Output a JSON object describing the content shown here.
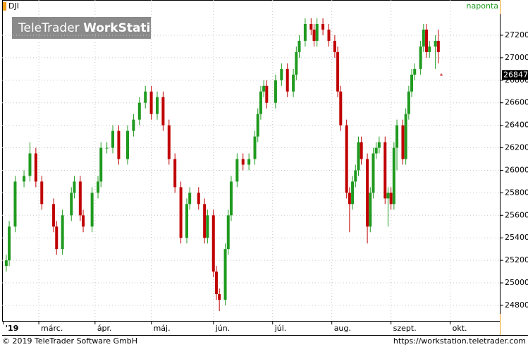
{
  "chart_data": {
    "type": "candlestick",
    "symbol": "DJI",
    "interval": "naponta",
    "watermark_brand": "TeleTrader",
    "watermark_product": "WorkStation",
    "footer_left": "© 2019 TeleTrader Software GmbH",
    "footer_right": "https://workstation.teletrader.com",
    "up_color": "#1f9a1f",
    "down_color": "#c00000",
    "xlim": [
      -1.4,
      167
    ],
    "ylim": [
      24662,
      27513
    ],
    "yticks": [
      24800,
      25000,
      25200,
      25400,
      25600,
      25800,
      26000,
      26200,
      26400,
      26600,
      26800,
      27000,
      27200
    ],
    "xticks": [
      {
        "value": -1,
        "label": "'19"
      },
      {
        "value": 11,
        "label": "márc."
      },
      {
        "value": 30,
        "label": "ápr."
      },
      {
        "value": 49,
        "label": "máj."
      },
      {
        "value": 70,
        "label": "jún."
      },
      {
        "value": 90,
        "label": "júl."
      },
      {
        "value": 110,
        "label": "aug."
      },
      {
        "value": 130,
        "label": "szept."
      },
      {
        "value": 150,
        "label": "okt."
      }
    ],
    "grid": true,
    "x": [
      0,
      1,
      3,
      6,
      8,
      10,
      12,
      16,
      17,
      19,
      22,
      23,
      25,
      26,
      29,
      31,
      32,
      34,
      36,
      38,
      41,
      43,
      45,
      47,
      49,
      51,
      53,
      55,
      57,
      59,
      61,
      62,
      65,
      67,
      68,
      70,
      71,
      72,
      74,
      75,
      76,
      78,
      80,
      82,
      84,
      85,
      86,
      87,
      88,
      91,
      93,
      95,
      97,
      98,
      99,
      101,
      103,
      104,
      105,
      107,
      109,
      111,
      112,
      113,
      115,
      116,
      117,
      118,
      119,
      120,
      122,
      123,
      124,
      125,
      126,
      128,
      129,
      130,
      131,
      132,
      134,
      135,
      136,
      137,
      138,
      140,
      141,
      142,
      143,
      145,
      146,
      147
    ],
    "open": [
      25150,
      25200,
      25500,
      25900,
      25950,
      26150,
      25900,
      25700,
      25500,
      25300,
      25600,
      25800,
      25900,
      25600,
      25500,
      25800,
      25900,
      26200,
      26200,
      26350,
      26100,
      26350,
      26450,
      26600,
      26700,
      26500,
      26650,
      26400,
      26100,
      25850,
      25400,
      25700,
      25800,
      25700,
      25400,
      25600,
      25100,
      24900,
      24850,
      25300,
      25600,
      25900,
      26100,
      26050,
      26100,
      26300,
      26500,
      26700,
      26750,
      26600,
      26800,
      26900,
      26700,
      26850,
      27050,
      27150,
      27300,
      27250,
      27150,
      27300,
      27250,
      27150,
      27050,
      26700,
      26400,
      25800,
      25700,
      25900,
      26000,
      26250,
      26100,
      25500,
      25800,
      26150,
      26200,
      26250,
      25750,
      25800,
      25700,
      26200,
      26400,
      26100,
      26500,
      26700,
      26850,
      26900,
      27100,
      27250,
      27050,
      27100,
      27150,
      26850
    ],
    "high": [
      25250,
      25550,
      25950,
      26000,
      26250,
      26200,
      25950,
      25750,
      25550,
      25650,
      25850,
      25950,
      25950,
      25650,
      25850,
      25950,
      26250,
      26250,
      26400,
      26400,
      26400,
      26500,
      26650,
      26750,
      26750,
      26700,
      26700,
      26450,
      26150,
      25900,
      25750,
      25850,
      25850,
      25750,
      25650,
      25650,
      25150,
      24950,
      25350,
      25650,
      25950,
      26150,
      26150,
      26150,
      26350,
      26550,
      26750,
      26800,
      26800,
      26850,
      26950,
      26950,
      26900,
      27100,
      27200,
      27350,
      27350,
      27300,
      27350,
      27350,
      27300,
      27200,
      27100,
      26750,
      26450,
      25850,
      25950,
      26050,
      26300,
      26300,
      26150,
      25850,
      26200,
      26250,
      26300,
      26300,
      25850,
      25850,
      26250,
      26450,
      26450,
      26550,
      26750,
      26900,
      26950,
      27150,
      27300,
      27300,
      27150,
      27200,
      27250,
      26860
    ],
    "low": [
      25100,
      25150,
      25450,
      25850,
      25900,
      25850,
      25650,
      25450,
      25250,
      25250,
      25550,
      25750,
      25550,
      25450,
      25450,
      25750,
      25850,
      26150,
      26150,
      26050,
      26050,
      26300,
      26400,
      26550,
      26450,
      26450,
      26350,
      26050,
      25800,
      25350,
      25350,
      25650,
      25650,
      25350,
      25350,
      25050,
      24850,
      24750,
      24800,
      25250,
      25550,
      25850,
      26000,
      26000,
      26050,
      26250,
      26450,
      26650,
      26550,
      26550,
      26750,
      26650,
      26650,
      26800,
      27000,
      27100,
      27200,
      27100,
      27100,
      27200,
      27100,
      27000,
      26650,
      26350,
      25750,
      25450,
      25650,
      25850,
      25950,
      26050,
      25350,
      25450,
      25750,
      26100,
      26150,
      25700,
      25500,
      25650,
      25650,
      26000,
      26050,
      26050,
      26450,
      26650,
      26800,
      26850,
      27050,
      27000,
      27000,
      26900,
      26950,
      26840
    ],
    "close": [
      25200,
      25500,
      25900,
      25950,
      26150,
      25900,
      25700,
      25500,
      25300,
      25600,
      25800,
      25900,
      25600,
      25500,
      25800,
      25900,
      26200,
      26200,
      26350,
      26100,
      26350,
      26450,
      26600,
      26700,
      26500,
      26650,
      26400,
      26100,
      25850,
      25400,
      25700,
      25800,
      25700,
      25400,
      25600,
      25100,
      24900,
      24850,
      25300,
      25600,
      25900,
      26100,
      26050,
      26100,
      26300,
      26500,
      26700,
      26750,
      26600,
      26800,
      26900,
      26700,
      26850,
      27050,
      27150,
      27300,
      27250,
      27150,
      27300,
      27250,
      27150,
      27050,
      26700,
      26400,
      25800,
      25700,
      25900,
      26000,
      26250,
      26100,
      25500,
      25800,
      26150,
      26200,
      26250,
      25750,
      25800,
      25700,
      26200,
      26400,
      26100,
      26500,
      26700,
      26850,
      26900,
      27100,
      27250,
      27050,
      27100,
      27150,
      27050,
      26847
    ]
  }
}
